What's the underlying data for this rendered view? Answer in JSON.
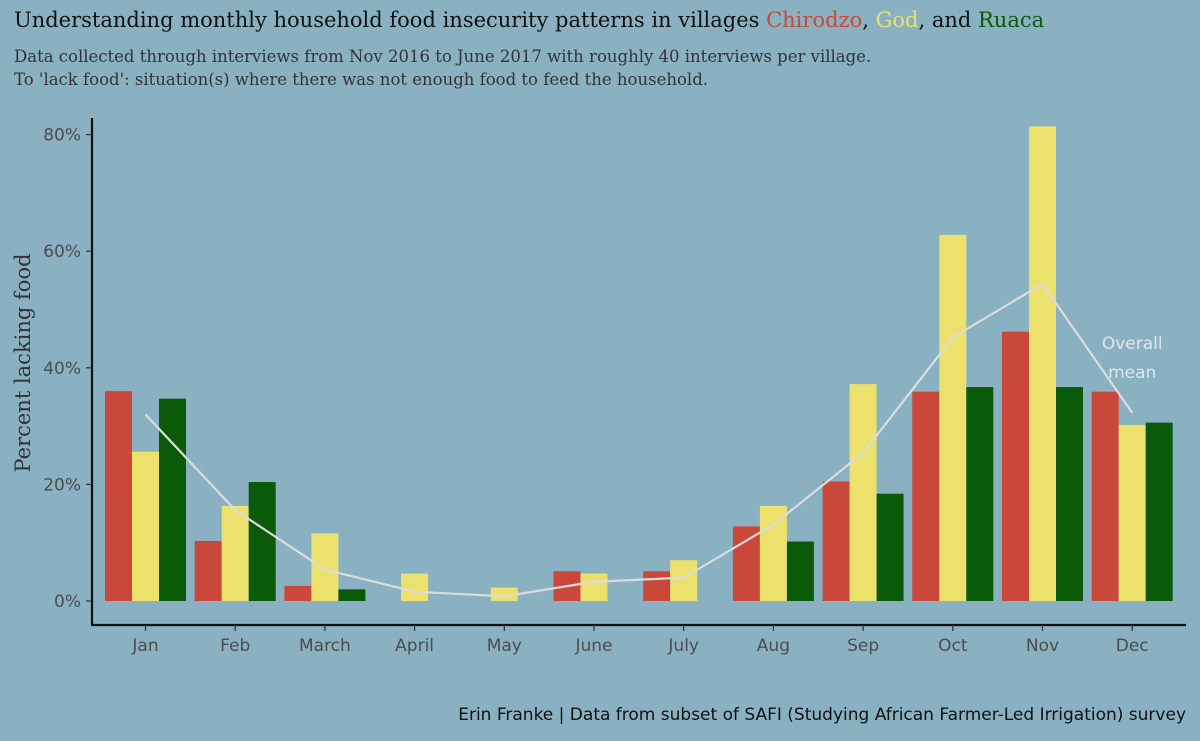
{
  "chart_data": {
    "type": "bar",
    "title_prefix": "Understanding monthly household food insecurity patterns in villages ",
    "title_villages": [
      {
        "name": "Chirodzo",
        "color": "#c9483a",
        "suffix": ", "
      },
      {
        "name": "God",
        "color": "#ece16d",
        "suffix": ", and "
      },
      {
        "name": "Ruaca",
        "color": "#0a5a0a",
        "suffix": ""
      }
    ],
    "subtitle": [
      "Data collected through interviews from Nov 2016 to June 2017 with roughly 40 interviews per village.",
      "To 'lack food': situation(s) where there was not enough food to feed the household."
    ],
    "xlabel": "",
    "ylabel": "Percent lacking food",
    "ylim": [
      0,
      84
    ],
    "yticks": [
      0,
      20,
      40,
      60,
      80
    ],
    "ytick_labels": [
      "0%",
      "20%",
      "40%",
      "60%",
      "80%"
    ],
    "categories": [
      "Jan",
      "Feb",
      "March",
      "April",
      "May",
      "June",
      "July",
      "Aug",
      "Sep",
      "Oct",
      "Nov",
      "Dec"
    ],
    "series": [
      {
        "name": "Chirodzo",
        "color": "#c9483a",
        "values": [
          36,
          10.3,
          2.6,
          0,
          0,
          5.1,
          5.1,
          12.8,
          20.5,
          35.9,
          46.2,
          35.9
        ]
      },
      {
        "name": "God",
        "color": "#ece16d",
        "values": [
          25.6,
          16.3,
          11.6,
          4.7,
          2.3,
          4.7,
          7,
          16.3,
          37.2,
          62.8,
          81.4,
          30.2
        ]
      },
      {
        "name": "Ruaca",
        "color": "#0a5a0a",
        "values": [
          34.7,
          20.4,
          2,
          0,
          0,
          0,
          0,
          10.2,
          18.4,
          36.7,
          36.7,
          30.6
        ]
      }
    ],
    "overall_mean": {
      "name": "Overall mean",
      "color": "#dcdcdc",
      "values": [
        32,
        15.6,
        5.4,
        1.6,
        0.8,
        3.3,
        4,
        13.1,
        25.4,
        45.2,
        54.4,
        32.3
      ],
      "label_lines": [
        "Overall",
        "mean"
      ]
    },
    "caption": "Erin Franke | Data from subset of  SAFI (Studying African Farmer-Led Irrigation) survey",
    "background": "#8ab1c2"
  }
}
